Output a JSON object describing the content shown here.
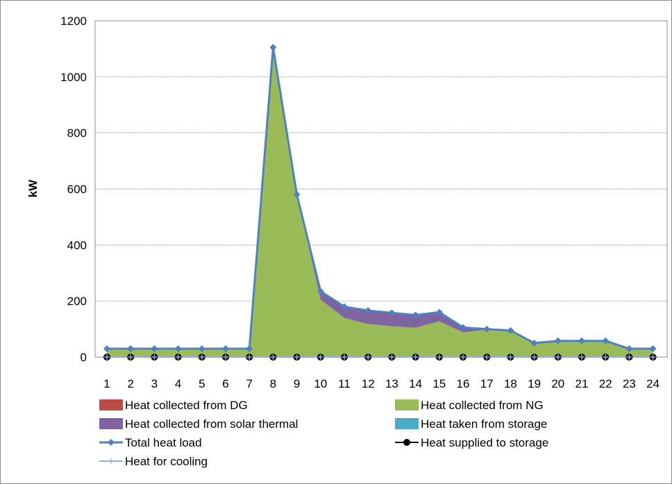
{
  "chart_data": {
    "type": "area",
    "x": [
      1,
      2,
      3,
      4,
      5,
      6,
      7,
      8,
      9,
      10,
      11,
      12,
      13,
      14,
      15,
      16,
      17,
      18,
      19,
      20,
      21,
      22,
      23,
      24
    ],
    "x_tick_labels": [
      "1",
      "2",
      "3",
      "4",
      "5",
      "6",
      "7",
      "8",
      "9",
      "10",
      "11",
      "12",
      "13",
      "14",
      "15",
      "16",
      "17",
      "18",
      "19",
      "20",
      "21",
      "22",
      "23",
      "24"
    ],
    "ylabel": "kW",
    "ylim": [
      0,
      1200
    ],
    "y_ticks": [
      0,
      200,
      400,
      600,
      800,
      1000,
      1200
    ],
    "y_tick_labels": [
      "0",
      "200",
      "400",
      "600",
      "800",
      "1000",
      "1200"
    ],
    "grid": "horizontal",
    "legend_position": "bottom",
    "stacked_areas": [
      {
        "name": "Heat collected from DG",
        "color": "#be4b48",
        "values": [
          0,
          0,
          0,
          0,
          0,
          0,
          0,
          0,
          0,
          0,
          0,
          0,
          0,
          0,
          0,
          0,
          0,
          0,
          0,
          0,
          0,
          0,
          0,
          0
        ]
      },
      {
        "name": "Heat collected from NG",
        "color": "#9bbb59",
        "values": [
          30,
          30,
          30,
          30,
          30,
          30,
          30,
          1105,
          580,
          205,
          140,
          118,
          110,
          105,
          128,
          88,
          98,
          95,
          50,
          58,
          58,
          58,
          30,
          30
        ]
      },
      {
        "name": "Heat collected from solar thermal",
        "color": "#8064a2",
        "values": [
          0,
          0,
          0,
          0,
          0,
          0,
          0,
          0,
          0,
          30,
          40,
          48,
          48,
          45,
          32,
          18,
          2,
          0,
          0,
          0,
          0,
          0,
          0,
          0
        ]
      },
      {
        "name": "Heat taken from storage",
        "color": "#4bacc6",
        "values": [
          0,
          0,
          0,
          0,
          0,
          0,
          0,
          0,
          0,
          0,
          0,
          0,
          0,
          0,
          0,
          0,
          0,
          0,
          0,
          0,
          0,
          0,
          0,
          0
        ]
      }
    ],
    "lines": [
      {
        "name": "Total heat load",
        "color": "#4f81bd",
        "marker": "diamond",
        "values": [
          30,
          30,
          30,
          30,
          30,
          30,
          30,
          1105,
          580,
          235,
          180,
          166,
          158,
          150,
          160,
          106,
          100,
          95,
          50,
          58,
          58,
          58,
          30,
          30
        ]
      },
      {
        "name": "Heat supplied to storage",
        "color": "#000000",
        "marker": "circle",
        "values": [
          0,
          0,
          0,
          0,
          0,
          0,
          0,
          0,
          0,
          0,
          0,
          0,
          0,
          0,
          0,
          0,
          0,
          0,
          0,
          0,
          0,
          0,
          0,
          0
        ]
      },
      {
        "name": "Heat for cooling",
        "color": "#95b3d7",
        "marker": "plus",
        "values": [
          0,
          0,
          0,
          0,
          0,
          0,
          0,
          0,
          0,
          0,
          0,
          0,
          0,
          0,
          0,
          0,
          0,
          0,
          0,
          0,
          0,
          0,
          0,
          0
        ]
      }
    ],
    "legend_order": [
      "Heat collected from DG",
      "Heat collected from NG",
      "Heat collected from solar thermal",
      "Heat taken from storage",
      "Total heat load",
      "Heat supplied to storage",
      "Heat for cooling"
    ]
  }
}
